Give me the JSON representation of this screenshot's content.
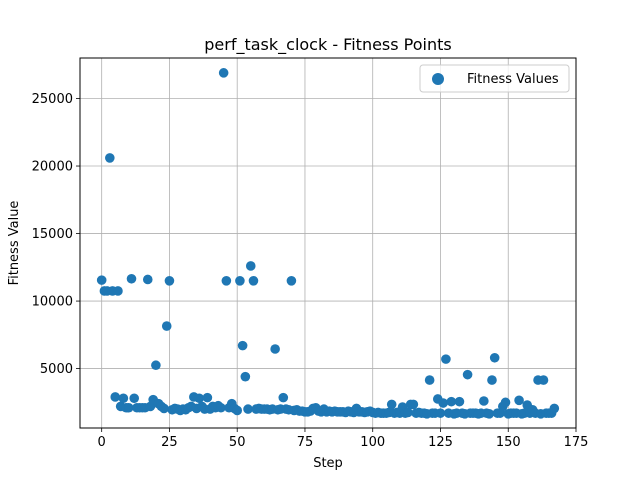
{
  "chart_data": {
    "type": "scatter",
    "title": "perf_task_clock - Fitness Points",
    "xlabel": "Step",
    "ylabel": "Fitness Value",
    "xlim": [
      -8,
      175
    ],
    "ylim": [
      600,
      28000
    ],
    "xticks": [
      0,
      25,
      50,
      75,
      100,
      125,
      150,
      175
    ],
    "yticks": [
      5000,
      10000,
      15000,
      20000,
      25000
    ],
    "grid": true,
    "legend_position": "top-right",
    "colors": {
      "series": "#1f77b4",
      "grid": "#b0b0b0"
    },
    "series": [
      {
        "name": "Fitness Values",
        "points": [
          [
            0,
            11550
          ],
          [
            1,
            10750
          ],
          [
            2,
            10750
          ],
          [
            3,
            20600
          ],
          [
            4,
            10750
          ],
          [
            5,
            2900
          ],
          [
            6,
            10750
          ],
          [
            7,
            2200
          ],
          [
            8,
            2800
          ],
          [
            9,
            2100
          ],
          [
            10,
            2100
          ],
          [
            11,
            11650
          ],
          [
            12,
            2800
          ],
          [
            13,
            2100
          ],
          [
            14,
            2100
          ],
          [
            15,
            2100
          ],
          [
            16,
            2100
          ],
          [
            17,
            11600
          ],
          [
            18,
            2200
          ],
          [
            19,
            2700
          ],
          [
            20,
            5250
          ],
          [
            21,
            2400
          ],
          [
            22,
            2200
          ],
          [
            23,
            2050
          ],
          [
            24,
            8150
          ],
          [
            25,
            11500
          ],
          [
            26,
            1950
          ],
          [
            27,
            2050
          ],
          [
            28,
            2000
          ],
          [
            29,
            1900
          ],
          [
            30,
            2000
          ],
          [
            31,
            1950
          ],
          [
            32,
            2100
          ],
          [
            33,
            2200
          ],
          [
            34,
            2900
          ],
          [
            35,
            2050
          ],
          [
            36,
            2800
          ],
          [
            37,
            2200
          ],
          [
            38,
            2000
          ],
          [
            39,
            2850
          ],
          [
            40,
            2000
          ],
          [
            41,
            2200
          ],
          [
            42,
            2100
          ],
          [
            43,
            2250
          ],
          [
            44,
            2100
          ],
          [
            45,
            26900
          ],
          [
            46,
            11500
          ],
          [
            47,
            2100
          ],
          [
            48,
            2400
          ],
          [
            49,
            2050
          ],
          [
            50,
            1900
          ],
          [
            51,
            11500
          ],
          [
            52,
            6700
          ],
          [
            53,
            4400
          ],
          [
            54,
            2000
          ],
          [
            55,
            12600
          ],
          [
            56,
            11500
          ],
          [
            57,
            2000
          ],
          [
            58,
            2050
          ],
          [
            59,
            2000
          ],
          [
            60,
            2000
          ],
          [
            61,
            2000
          ],
          [
            62,
            1950
          ],
          [
            63,
            2000
          ],
          [
            64,
            6450
          ],
          [
            65,
            1950
          ],
          [
            66,
            2000
          ],
          [
            67,
            2850
          ],
          [
            68,
            2000
          ],
          [
            69,
            1950
          ],
          [
            70,
            11500
          ],
          [
            71,
            1900
          ],
          [
            72,
            1950
          ],
          [
            73,
            1850
          ],
          [
            74,
            1850
          ],
          [
            75,
            1800
          ],
          [
            76,
            1800
          ],
          [
            77,
            1850
          ],
          [
            78,
            2050
          ],
          [
            79,
            2100
          ],
          [
            80,
            1850
          ],
          [
            81,
            1800
          ],
          [
            82,
            2000
          ],
          [
            83,
            1800
          ],
          [
            84,
            1850
          ],
          [
            85,
            1800
          ],
          [
            86,
            1850
          ],
          [
            87,
            1800
          ],
          [
            88,
            1800
          ],
          [
            89,
            1800
          ],
          [
            90,
            1750
          ],
          [
            91,
            1850
          ],
          [
            92,
            1800
          ],
          [
            93,
            1750
          ],
          [
            94,
            2050
          ],
          [
            95,
            1800
          ],
          [
            96,
            1800
          ],
          [
            97,
            1750
          ],
          [
            98,
            1800
          ],
          [
            99,
            1850
          ],
          [
            100,
            1750
          ],
          [
            101,
            1700
          ],
          [
            102,
            1750
          ],
          [
            103,
            1700
          ],
          [
            104,
            1700
          ],
          [
            105,
            1700
          ],
          [
            106,
            1750
          ],
          [
            107,
            2350
          ],
          [
            108,
            1700
          ],
          [
            109,
            1750
          ],
          [
            110,
            1700
          ],
          [
            111,
            2150
          ],
          [
            112,
            1700
          ],
          [
            113,
            1750
          ],
          [
            114,
            2350
          ],
          [
            115,
            2350
          ],
          [
            116,
            1700
          ],
          [
            117,
            1750
          ],
          [
            118,
            1700
          ],
          [
            119,
            1700
          ],
          [
            120,
            1650
          ],
          [
            121,
            4150
          ],
          [
            122,
            1700
          ],
          [
            123,
            1700
          ],
          [
            124,
            2750
          ],
          [
            125,
            1700
          ],
          [
            126,
            2450
          ],
          [
            127,
            5700
          ],
          [
            128,
            1700
          ],
          [
            129,
            2550
          ],
          [
            130,
            1650
          ],
          [
            131,
            1700
          ],
          [
            132,
            2550
          ],
          [
            133,
            1700
          ],
          [
            134,
            1650
          ],
          [
            135,
            4550
          ],
          [
            136,
            1700
          ],
          [
            137,
            1700
          ],
          [
            138,
            1700
          ],
          [
            139,
            1650
          ],
          [
            140,
            1700
          ],
          [
            141,
            2600
          ],
          [
            142,
            1700
          ],
          [
            143,
            1650
          ],
          [
            144,
            4150
          ],
          [
            145,
            5800
          ],
          [
            146,
            1700
          ],
          [
            147,
            1700
          ],
          [
            148,
            2200
          ],
          [
            149,
            2500
          ],
          [
            150,
            1650
          ],
          [
            151,
            1700
          ],
          [
            152,
            1700
          ],
          [
            153,
            1700
          ],
          [
            154,
            2650
          ],
          [
            155,
            1650
          ],
          [
            156,
            1700
          ],
          [
            157,
            2300
          ],
          [
            158,
            1700
          ],
          [
            159,
            1950
          ],
          [
            160,
            1700
          ],
          [
            161,
            4150
          ],
          [
            162,
            1650
          ],
          [
            163,
            4150
          ],
          [
            164,
            1700
          ],
          [
            165,
            1700
          ],
          [
            166,
            1700
          ],
          [
            167,
            2050
          ]
        ]
      }
    ]
  }
}
